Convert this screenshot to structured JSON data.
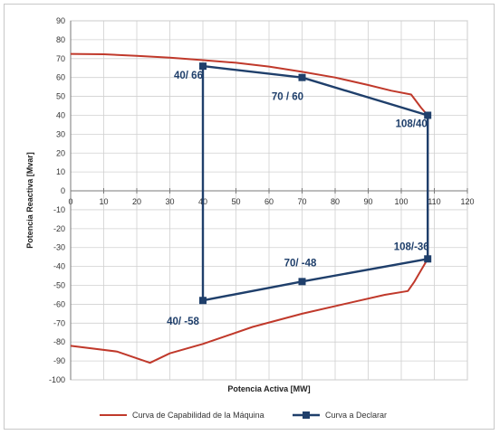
{
  "chart_data": {
    "type": "line",
    "xlabel": "Potencia Activa [MW]",
    "ylabel": "Potencia Reactiva [Mvar]",
    "xlim": [
      0,
      120
    ],
    "ylim": [
      -100,
      90
    ],
    "xticks": [
      0,
      10,
      20,
      30,
      40,
      50,
      60,
      70,
      80,
      90,
      100,
      110,
      120
    ],
    "yticks": [
      90,
      80,
      70,
      60,
      50,
      40,
      30,
      20,
      10,
      0,
      -10,
      -20,
      -30,
      -40,
      -50,
      -60,
      -70,
      -80,
      -90,
      -100
    ],
    "grid": true,
    "legend_position": "bottom",
    "series": [
      {
        "name": "Curva de Capabilidad de la Máquina",
        "color": "#c0392b",
        "points": [
          [
            0,
            72.5
          ],
          [
            10,
            72.3
          ],
          [
            20,
            71.5
          ],
          [
            30,
            70.5
          ],
          [
            40,
            69.2
          ],
          [
            50,
            67.8
          ],
          [
            60,
            65.8
          ],
          [
            70,
            63
          ],
          [
            80,
            60
          ],
          [
            90,
            56
          ],
          [
            97,
            53
          ],
          [
            103,
            51
          ],
          [
            106,
            44
          ],
          [
            108,
            40
          ],
          [
            108,
            38
          ],
          [
            108,
            -36
          ],
          [
            106,
            -42
          ],
          [
            104,
            -48
          ],
          [
            102,
            -53
          ],
          [
            95,
            -55
          ],
          [
            85,
            -59
          ],
          [
            70,
            -65
          ],
          [
            55,
            -72
          ],
          [
            40,
            -81
          ],
          [
            30,
            -86
          ],
          [
            24,
            -91
          ],
          [
            14,
            -85
          ],
          [
            0,
            -82
          ]
        ]
      },
      {
        "name": "Curva a Declarar",
        "color": "#1f3f6b",
        "points": [
          [
            40,
            66
          ],
          [
            70,
            60
          ],
          [
            108,
            40
          ],
          [
            108,
            -36
          ],
          [
            70,
            -48
          ],
          [
            40,
            -58
          ],
          [
            40,
            66
          ]
        ],
        "markers": [
          [
            40,
            66
          ],
          [
            70,
            60
          ],
          [
            108,
            40
          ],
          [
            108,
            -36
          ],
          [
            70,
            -48
          ],
          [
            40,
            -58
          ]
        ]
      }
    ],
    "annotations": [
      {
        "text": "40/ 66",
        "x": 40,
        "y": 66
      },
      {
        "text": "70 / 60",
        "x": 70,
        "y": 60
      },
      {
        "text": "108/40",
        "x": 108,
        "y": 40
      },
      {
        "text": "108/-36",
        "x": 108,
        "y": -36
      },
      {
        "text": "70/ -48",
        "x": 70,
        "y": -48
      },
      {
        "text": "40/ -58",
        "x": 40,
        "y": -58
      }
    ]
  }
}
